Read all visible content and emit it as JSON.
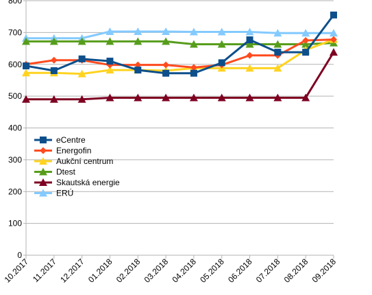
{
  "chart_data": {
    "type": "line",
    "title": "",
    "xlabel": "",
    "ylabel": "",
    "categories": [
      "10.2017",
      "11.2017",
      "12.2017",
      "01.2018",
      "02.2018",
      "03.2018",
      "04.2018",
      "05.2018",
      "06.2018",
      "07.2018",
      "08.2018",
      "09.2018"
    ],
    "ylim": [
      0,
      800
    ],
    "yticks": [
      0,
      100,
      200,
      300,
      400,
      500,
      600,
      700,
      800
    ],
    "grid": "horizontal",
    "legend_position": "left",
    "series": [
      {
        "name": "eCentre",
        "color": "#0d4f8b",
        "marker": "square",
        "values": [
          595,
          580,
          617,
          610,
          582,
          572,
          572,
          605,
          677,
          638,
          638,
          755
        ]
      },
      {
        "name": "Energofin",
        "color": "#ff4b1f",
        "marker": "diamond",
        "values": [
          600,
          613,
          613,
          598,
          598,
          598,
          590,
          598,
          628,
          628,
          675,
          678
        ]
      },
      {
        "name": "Aukční centrum",
        "color": "#ffd320",
        "marker": "triangle",
        "values": [
          573,
          573,
          570,
          582,
          582,
          580,
          588,
          588,
          588,
          588,
          645,
          678
        ]
      },
      {
        "name": "Dtest",
        "color": "#579d1c",
        "marker": "triangle",
        "values": [
          672,
          672,
          672,
          672,
          672,
          672,
          663,
          663,
          663,
          663,
          663,
          667
        ]
      },
      {
        "name": "Skautská energie",
        "color": "#7e0021",
        "marker": "triangle",
        "values": [
          490,
          490,
          490,
          495,
          495,
          495,
          495,
          495,
          495,
          495,
          495,
          638
        ]
      },
      {
        "name": "ERÚ",
        "color": "#83caff",
        "marker": "triangle",
        "values": [
          682,
          682,
          682,
          703,
          703,
          703,
          702,
          702,
          702,
          698,
          698,
          698
        ]
      }
    ]
  }
}
